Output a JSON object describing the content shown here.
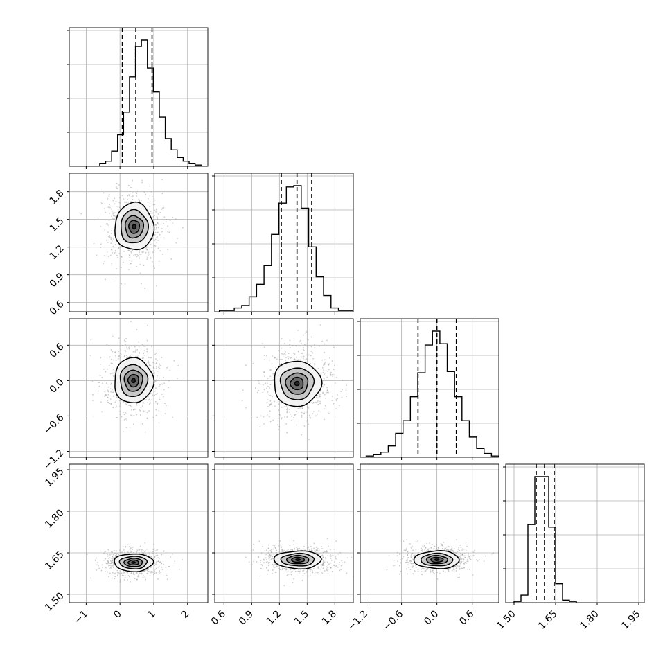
{
  "chart_data": {
    "type": "corner",
    "n_params": 4,
    "colors": {
      "hist": "#000000",
      "quantile": "#000000",
      "grid": "#b0b0b0",
      "points": "#9a9a9a"
    },
    "grid": true,
    "params": [
      {
        "range": [
          -1.5,
          2.6
        ],
        "ticks": [
          -1,
          0,
          1,
          2
        ],
        "tick_labels": [
          "−1",
          "0",
          "1",
          "2"
        ],
        "quantiles": [
          0.07,
          0.47,
          0.95
        ],
        "hist": [
          0.02,
          0.04,
          0.12,
          0.25,
          0.43,
          0.71,
          0.95,
          1.0,
          0.78,
          0.59,
          0.39,
          0.22,
          0.13,
          0.07,
          0.04,
          0.02,
          0.01
        ],
        "hist_edges": [
          -0.6,
          2.4
        ]
      },
      {
        "range": [
          0.5,
          2.0
        ],
        "ticks": [
          0.6,
          0.9,
          1.2,
          1.5,
          1.8
        ],
        "tick_labels": [
          "0.6",
          "0.9",
          "1.2",
          "1.5",
          "1.8"
        ],
        "quantiles": [
          1.22,
          1.39,
          1.55
        ],
        "hist": [
          0.01,
          0.01,
          0.03,
          0.05,
          0.12,
          0.22,
          0.37,
          0.62,
          0.87,
          1.0,
          1.01,
          0.83,
          0.52,
          0.28,
          0.13,
          0.03,
          0.01,
          0.01
        ],
        "hist_edges": [
          0.55,
          2.0
        ]
      },
      {
        "range": [
          -1.3,
          1.05
        ],
        "ticks": [
          -1.2,
          -0.6,
          0.0,
          0.6
        ],
        "tick_labels": [
          "−1.2",
          "−0.6",
          "0.0",
          "0.6"
        ],
        "quantiles": [
          -0.32,
          0.0,
          0.33
        ],
        "hist": [
          0.01,
          0.02,
          0.04,
          0.09,
          0.19,
          0.29,
          0.48,
          0.67,
          0.89,
          1.0,
          0.9,
          0.68,
          0.48,
          0.29,
          0.16,
          0.07,
          0.03,
          0.01
        ],
        "hist_edges": [
          -1.2,
          1.05
        ]
      },
      {
        "range": [
          1.47,
          1.97
        ],
        "ticks": [
          1.5,
          1.65,
          1.8,
          1.95
        ],
        "tick_labels": [
          "1.50",
          "1.65",
          "1.80",
          "1.95"
        ],
        "quantiles": [
          1.58,
          1.61,
          1.645
        ],
        "hist": [
          0.01,
          0.06,
          0.62,
          1.0,
          1.0,
          0.6,
          0.15,
          0.02,
          0.01
        ],
        "hist_edges": [
          1.5,
          1.725
        ]
      }
    ],
    "pairs": [
      {
        "x": 0,
        "y": 1,
        "center": [
          0.42,
          1.42
        ],
        "spread": [
          0.45,
          0.2
        ]
      },
      {
        "x": 0,
        "y": 2,
        "center": [
          0.4,
          0.0
        ],
        "spread": [
          0.45,
          0.3
        ]
      },
      {
        "x": 1,
        "y": 2,
        "center": [
          1.39,
          -0.05
        ],
        "spread": [
          0.2,
          0.3
        ]
      },
      {
        "x": 0,
        "y": 3,
        "center": [
          0.4,
          1.615
        ],
        "spread": [
          0.45,
          0.025
        ]
      },
      {
        "x": 1,
        "y": 3,
        "center": [
          1.4,
          1.625
        ],
        "spread": [
          0.2,
          0.025
        ]
      },
      {
        "x": 2,
        "y": 3,
        "center": [
          0.0,
          1.625
        ],
        "spread": [
          0.3,
          0.025
        ]
      }
    ]
  }
}
